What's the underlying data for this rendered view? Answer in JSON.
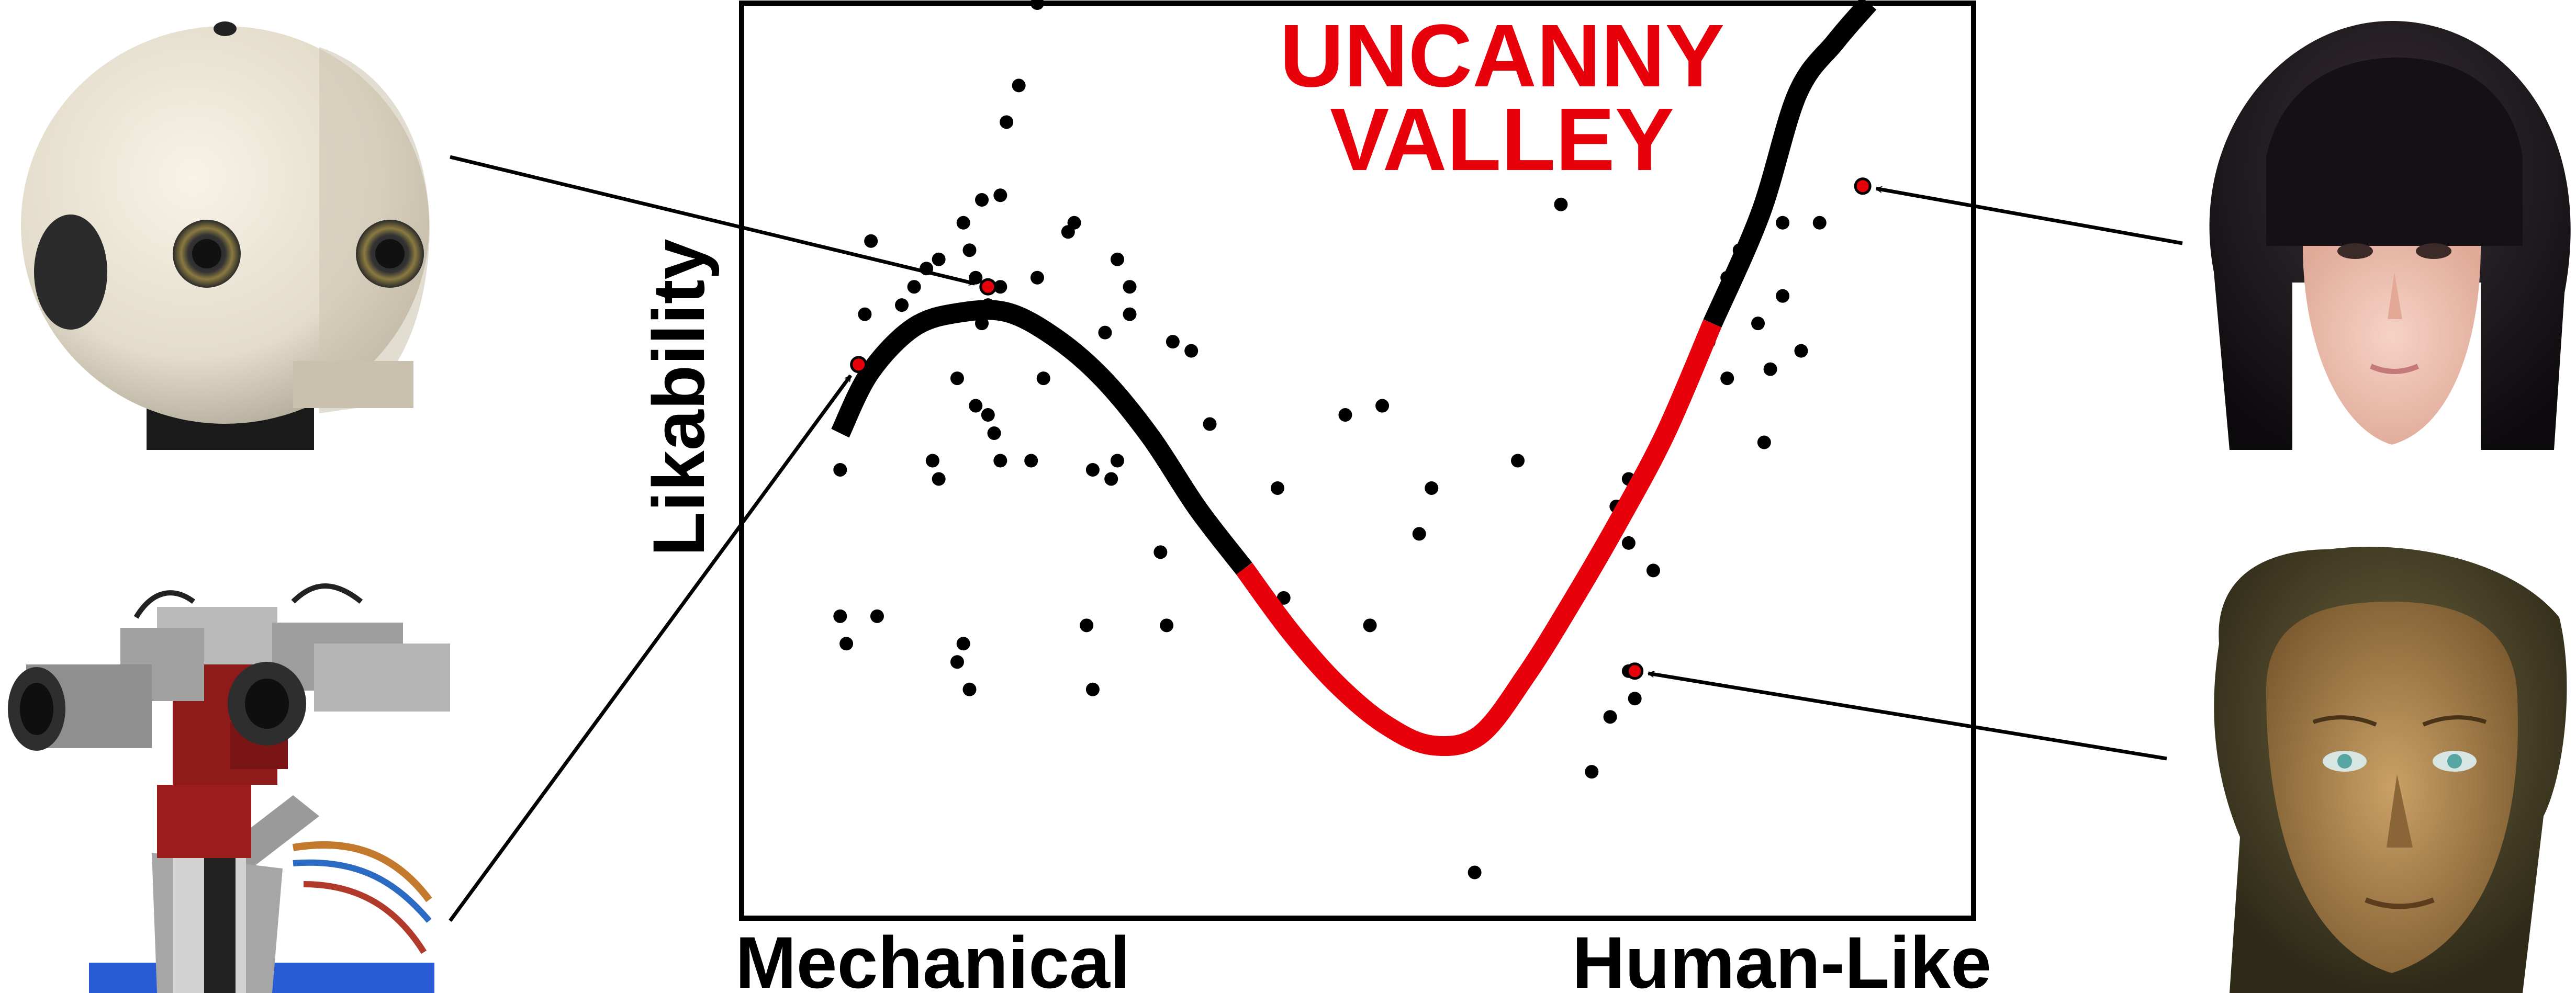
{
  "chart_data": {
    "type": "scatter",
    "xlabel_left": "Mechanical",
    "xlabel_right": "Human-Like",
    "ylabel": "Likability",
    "annotation": [
      "UNCANNY",
      "VALLEY"
    ],
    "annotation_color": "#e8000b",
    "curve_color": "#000000",
    "valley_color": "#e8000b",
    "point_color": "#000000",
    "highlight_color": "#e8000b",
    "xlim": [
      0,
      1
    ],
    "ylim": [
      0,
      1
    ],
    "grid": false,
    "axis_ticks": false,
    "curve": {
      "x": [
        0.08,
        0.104,
        0.14,
        0.178,
        0.216,
        0.255,
        0.293,
        0.332,
        0.37,
        0.408,
        0.445,
        0.483,
        0.522,
        0.56,
        0.599,
        0.637,
        0.675,
        0.712,
        0.75,
        0.788,
        0.827,
        0.857,
        0.888,
        0.915
      ],
      "y": [
        0.53,
        0.596,
        0.646,
        0.662,
        0.662,
        0.634,
        0.59,
        0.526,
        0.448,
        0.382,
        0.314,
        0.256,
        0.212,
        0.189,
        0.2,
        0.266,
        0.348,
        0.434,
        0.53,
        0.65,
        0.77,
        0.901,
        0.958,
        1.0
      ]
    },
    "valley_x_range": [
      0.44,
      0.825
    ],
    "highlighted_points": [
      {
        "x": 0.095,
        "y": 0.605
      },
      {
        "x": 0.2,
        "y": 0.69
      },
      {
        "x": 0.725,
        "y": 0.27
      },
      {
        "x": 0.91,
        "y": 0.8
      }
    ],
    "points": {
      "x": [
        0.24,
        0.225,
        0.215,
        0.21,
        0.195,
        0.18,
        0.185,
        0.19,
        0.16,
        0.105,
        0.1,
        0.15,
        0.14,
        0.13,
        0.195,
        0.2,
        0.21,
        0.24,
        0.245,
        0.265,
        0.27,
        0.305,
        0.315,
        0.295,
        0.315,
        0.175,
        0.19,
        0.2,
        0.21,
        0.205,
        0.155,
        0.35,
        0.365,
        0.435,
        0.38,
        0.16,
        0.235,
        0.285,
        0.3,
        0.305,
        0.08,
        0.08,
        0.085,
        0.11,
        0.18,
        0.175,
        0.185,
        0.28,
        0.285,
        0.345,
        0.34,
        0.44,
        0.51,
        0.55,
        0.56,
        0.52,
        0.49,
        0.63,
        0.72,
        0.71,
        0.72,
        0.74,
        0.785,
        0.8,
        0.81,
        0.825,
        0.835,
        0.845,
        0.845,
        0.875,
        0.86,
        0.83,
        0.8,
        0.665,
        0.595,
        0.72,
        0.725,
        0.705,
        0.69
      ],
      "y": [
        1.0,
        0.91,
        0.87,
        0.79,
        0.785,
        0.76,
        0.73,
        0.7,
        0.72,
        0.74,
        0.66,
        0.71,
        0.69,
        0.67,
        0.65,
        0.67,
        0.69,
        0.7,
        0.59,
        0.75,
        0.76,
        0.72,
        0.69,
        0.64,
        0.66,
        0.59,
        0.56,
        0.55,
        0.5,
        0.53,
        0.5,
        0.63,
        0.62,
        0.47,
        0.54,
        0.48,
        0.5,
        0.49,
        0.48,
        0.5,
        0.49,
        0.33,
        0.3,
        0.33,
        0.3,
        0.28,
        0.25,
        0.32,
        0.25,
        0.32,
        0.4,
        0.35,
        0.32,
        0.42,
        0.47,
        0.56,
        0.55,
        0.5,
        0.48,
        0.45,
        0.41,
        0.38,
        0.63,
        0.7,
        0.73,
        0.65,
        0.6,
        0.68,
        0.76,
        0.76,
        0.62,
        0.52,
        0.59,
        0.78,
        0.05,
        0.27,
        0.24,
        0.22,
        0.16
      ]
    },
    "images": [
      {
        "name": "robot-head-white-sphere",
        "side": "left",
        "target_point": 1
      },
      {
        "name": "robot-stereo-camera-head",
        "side": "left",
        "target_point": 0
      },
      {
        "name": "android-face-realistic",
        "side": "right",
        "target_point": 3
      },
      {
        "name": "android-face-uncanny",
        "side": "right",
        "target_point": 2
      }
    ]
  }
}
